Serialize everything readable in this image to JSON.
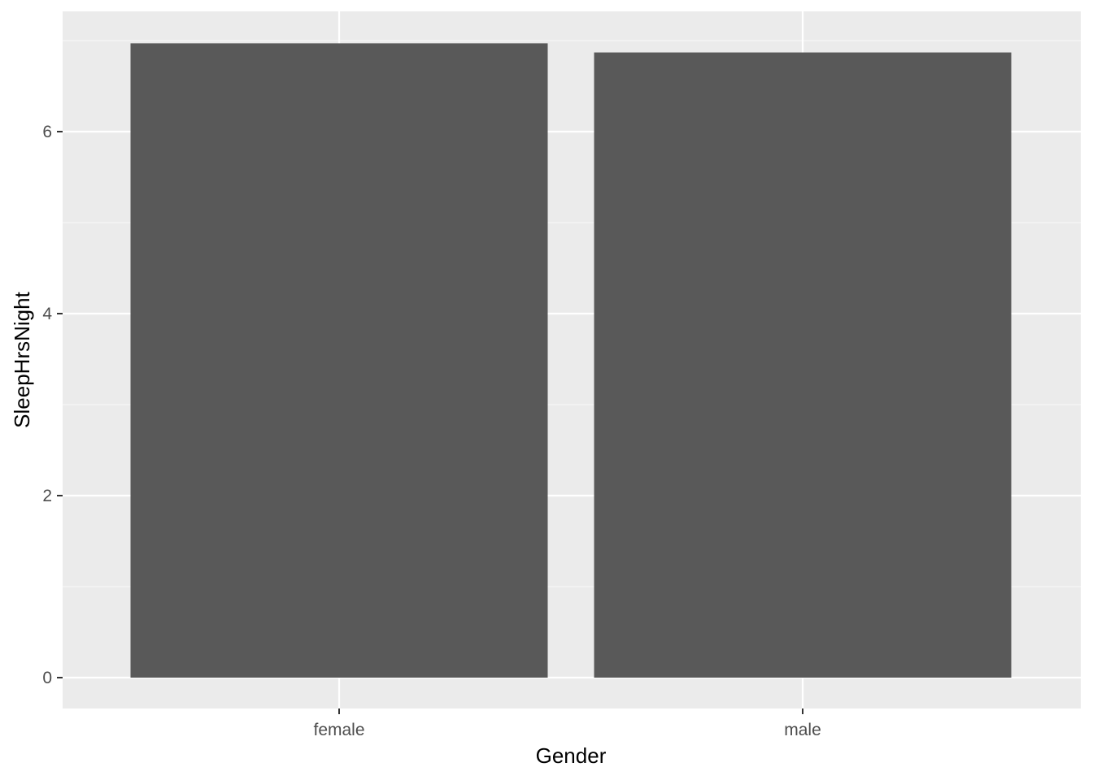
{
  "chart_data": {
    "type": "bar",
    "categories": [
      "female",
      "male"
    ],
    "values": [
      6.97,
      6.87
    ],
    "title": "",
    "xlabel": "Gender",
    "ylabel": "SleepHrsNight",
    "ylim": [
      0,
      7.3
    ],
    "yticks": [
      0,
      2,
      4,
      6
    ],
    "grid": true,
    "legend": "none",
    "colors": {
      "panel_background": "#ebebeb",
      "grid_major": "#ffffff",
      "grid_minor": "#f5f5f5",
      "bar_fill": "#595959",
      "tick_label": "#4d4d4d",
      "axis_title": "#000000"
    }
  }
}
